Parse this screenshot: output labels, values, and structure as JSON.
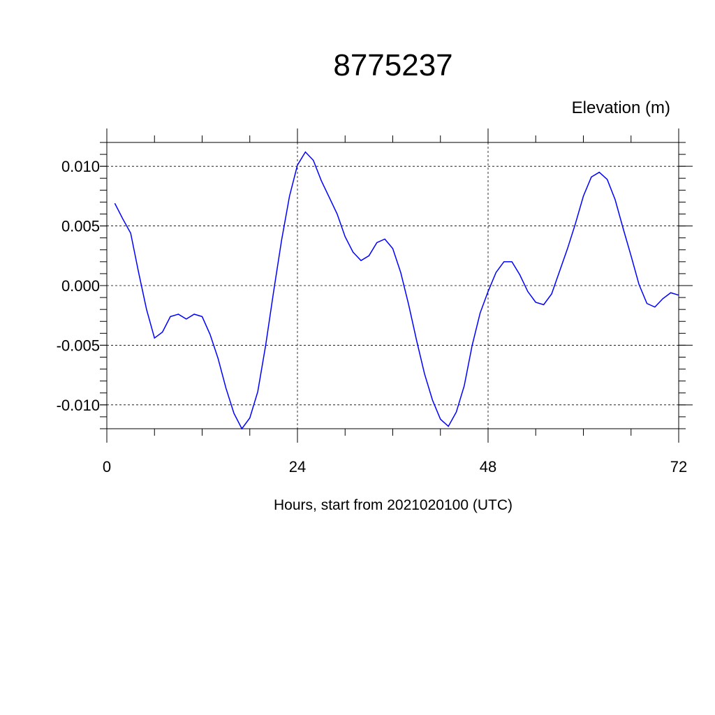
{
  "chart_data": {
    "type": "line",
    "title": "8775237",
    "subtitle": "Elevation (m)",
    "x_label": "Hours, start from 2021020100 (UTC)",
    "xlim": [
      0,
      72
    ],
    "xticks": [
      0,
      24,
      48,
      72
    ],
    "ylim": [
      -0.012,
      0.012
    ],
    "yticks": [
      {
        "value": -0.01,
        "label": "-0.010"
      },
      {
        "value": -0.005,
        "label": "-0.005"
      },
      {
        "value": 0,
        "label": "0.000"
      },
      {
        "value": 0.005,
        "label": "0.005"
      },
      {
        "value": 0.01,
        "label": "0.010"
      }
    ],
    "grid": true,
    "x": [
      1,
      2,
      3,
      4,
      5,
      6,
      7,
      8,
      9,
      10,
      11,
      12,
      13,
      14,
      15,
      16,
      17,
      18,
      19,
      20,
      21,
      22,
      23,
      24,
      25,
      26,
      27,
      28,
      29,
      30,
      31,
      32,
      33,
      34,
      35,
      36,
      37,
      38,
      39,
      40,
      41,
      42,
      43,
      44,
      45,
      46,
      47,
      48,
      49,
      50,
      51,
      52,
      53,
      54,
      55,
      56,
      57,
      58,
      59,
      60,
      61,
      62,
      63,
      64,
      65,
      66,
      67,
      68,
      69,
      70,
      71,
      72
    ],
    "series": [
      {
        "name": "Elevation",
        "color": "#0000ff",
        "values": [
          0.0069,
          0.0056,
          0.0044,
          0.0011,
          -0.002,
          -0.0044,
          -0.0039,
          -0.0026,
          -0.0024,
          -0.0028,
          -0.0024,
          -0.0026,
          -0.0041,
          -0.0061,
          -0.0086,
          -0.0107,
          -0.012,
          -0.0111,
          -0.0089,
          -0.005,
          -0.0005,
          0.0038,
          0.0075,
          0.0101,
          0.0112,
          0.0105,
          0.0088,
          0.0074,
          0.006,
          0.0041,
          0.0028,
          0.0021,
          0.0025,
          0.0036,
          0.0039,
          0.0031,
          0.0011,
          -0.0016,
          -0.0046,
          -0.0074,
          -0.0096,
          -0.0112,
          -0.0118,
          -0.0106,
          -0.0084,
          -0.005,
          -0.0023,
          -0.0005,
          0.0011,
          0.002,
          0.002,
          0.0009,
          -0.0005,
          -0.0014,
          -0.0016,
          -0.0007,
          0.0012,
          0.0031,
          0.0052,
          0.0075,
          0.0091,
          0.0095,
          0.0089,
          0.0072,
          0.0048,
          0.0025,
          0.0001,
          -0.0015,
          -0.0018,
          -0.0011,
          -0.0006,
          -0.0008
        ]
      }
    ]
  }
}
